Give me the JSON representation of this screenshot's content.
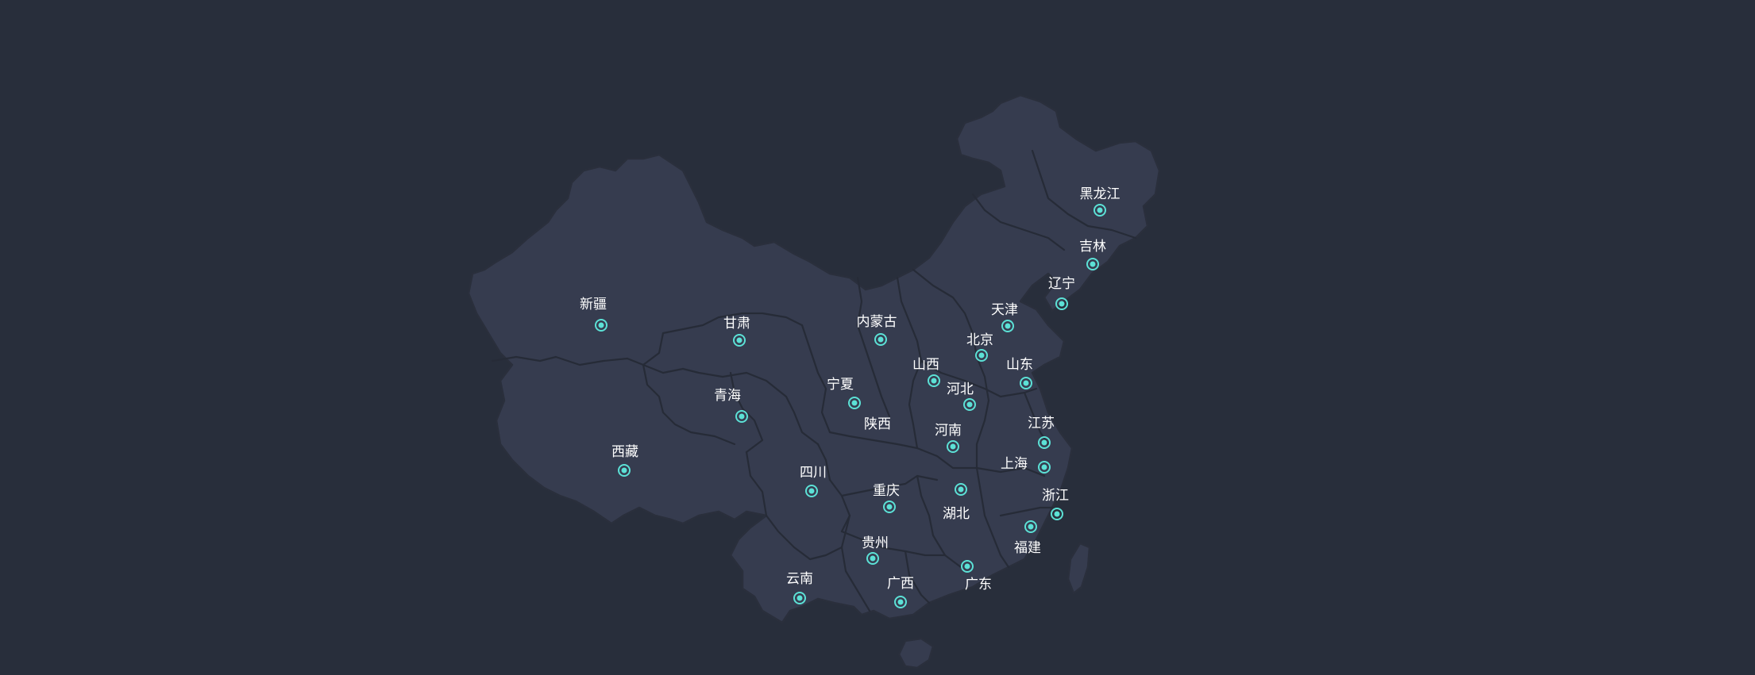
{
  "map": {
    "background_color": "#282e3b",
    "land_color": "#363c4f",
    "border_color": "#262b37",
    "marker_color": "#5ce1d6",
    "label_color": "#ffffff",
    "provinces": [
      {
        "name": "黑龙江",
        "id": "heilongjiang"
      },
      {
        "name": "吉林",
        "id": "jilin"
      },
      {
        "name": "辽宁",
        "id": "liaoning"
      },
      {
        "name": "天津",
        "id": "tianjin"
      },
      {
        "name": "北京",
        "id": "beijing"
      },
      {
        "name": "内蒙古",
        "id": "neimenggu"
      },
      {
        "name": "新疆",
        "id": "xinjiang"
      },
      {
        "name": "甘肃",
        "id": "gansu"
      },
      {
        "name": "山西",
        "id": "shanxi"
      },
      {
        "name": "山东",
        "id": "shandong"
      },
      {
        "name": "河北",
        "id": "hebei"
      },
      {
        "name": "宁夏",
        "id": "ningxia"
      },
      {
        "name": "青海",
        "id": "qinghai"
      },
      {
        "name": "陕西",
        "id": "shaanxi"
      },
      {
        "name": "河南",
        "id": "henan"
      },
      {
        "name": "江苏",
        "id": "jiangsu"
      },
      {
        "name": "上海",
        "id": "shanghai"
      },
      {
        "name": "西藏",
        "id": "xizang"
      },
      {
        "name": "四川",
        "id": "sichuan"
      },
      {
        "name": "重庆",
        "id": "chongqing"
      },
      {
        "name": "湖北",
        "id": "hubei"
      },
      {
        "name": "浙江",
        "id": "zhejiang"
      },
      {
        "name": "福建",
        "id": "fujian"
      },
      {
        "name": "贵州",
        "id": "guizhou"
      },
      {
        "name": "云南",
        "id": "yunnan"
      },
      {
        "name": "广西",
        "id": "guangxi"
      },
      {
        "name": "广东",
        "id": "guangdong"
      }
    ]
  }
}
